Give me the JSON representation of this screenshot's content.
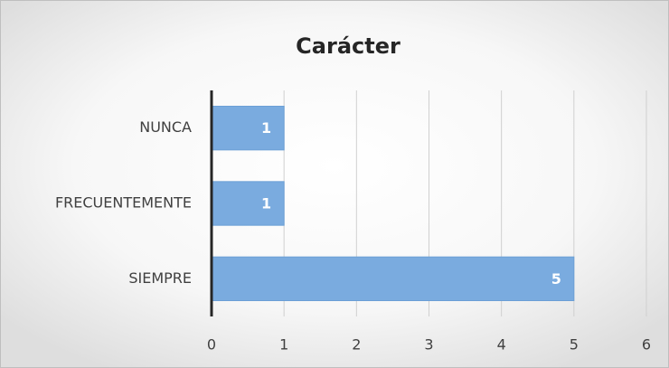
{
  "chart_data": {
    "type": "bar",
    "orientation": "horizontal",
    "title": "Carácter",
    "categories": [
      "NUNCA",
      "FRECUENTEMENTE",
      "SIEMPRE"
    ],
    "values": [
      1,
      1,
      5
    ],
    "color": "#7aabdf",
    "xlim": [
      0,
      6
    ],
    "xticks": [
      0,
      1,
      2,
      3,
      4,
      5,
      6
    ],
    "grid": true
  }
}
